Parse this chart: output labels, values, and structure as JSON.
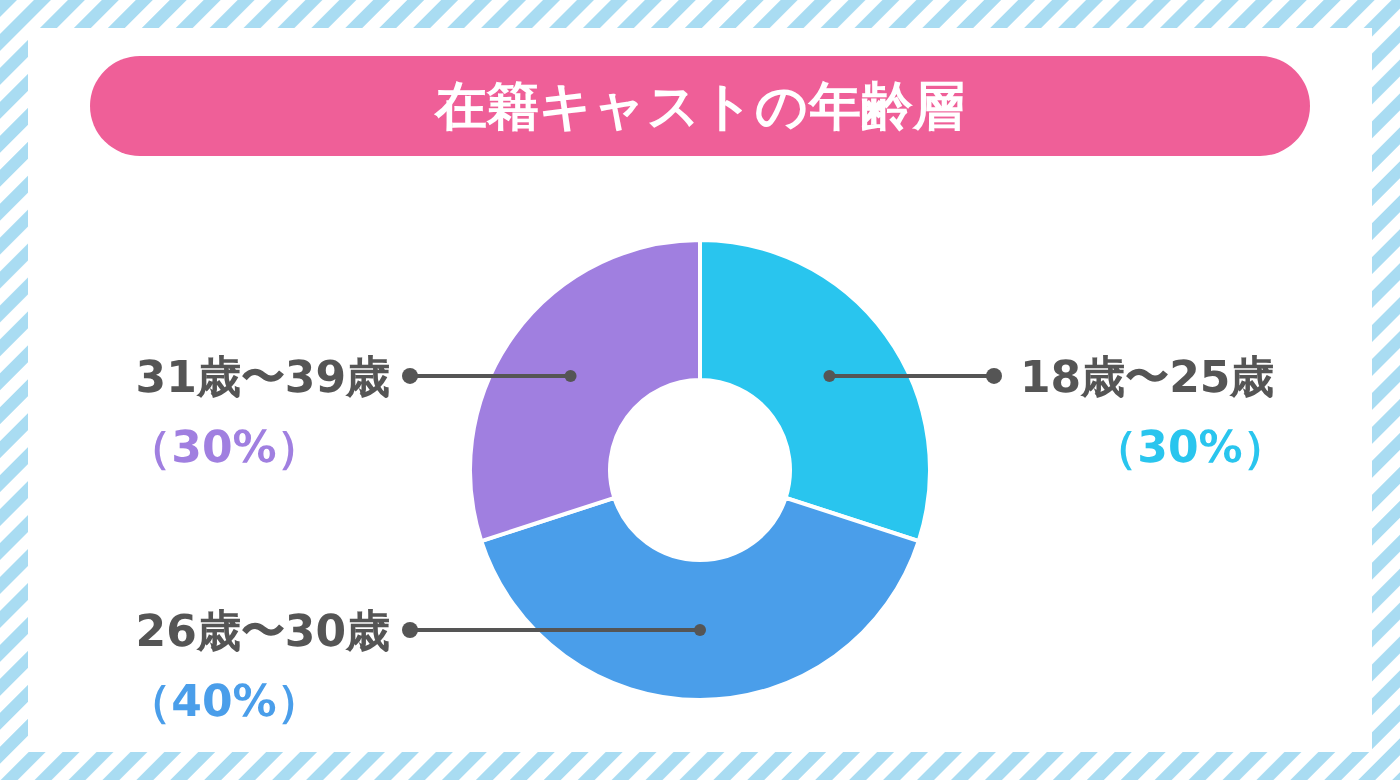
{
  "chart_data": {
    "type": "donut",
    "title": "在籍キャストの年齢層",
    "categories": [
      "18歳〜25歳",
      "26歳〜30歳",
      "31歳〜39歳"
    ],
    "values": [
      30,
      40,
      30
    ],
    "colors": [
      "#29c5ee",
      "#4a9eea",
      "#a07fe0"
    ],
    "value_labels": [
      "（30%）",
      "（40%）",
      "（30%）"
    ]
  }
}
